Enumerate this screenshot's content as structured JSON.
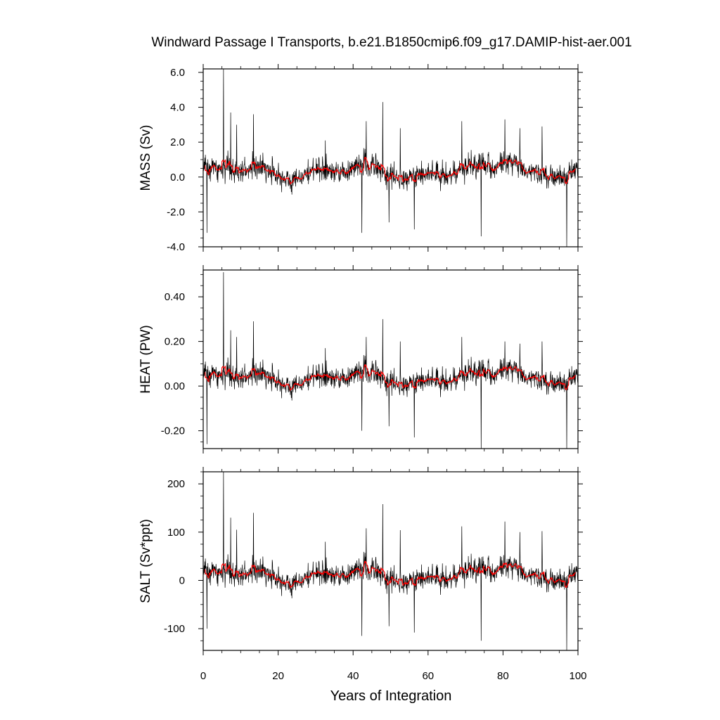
{
  "title": "Windward Passage I Transports, b.e21.B1850cmip6.f09_g17.DAMIP-hist-aer.001",
  "chart_data": [
    {
      "type": "line",
      "ylabel": "MASS (Sv)",
      "xlim": [
        0,
        100
      ],
      "ylim": [
        -4.0,
        6.2
      ],
      "yticks": [
        -4.0,
        -2.0,
        0.0,
        2.0,
        4.0,
        6.0
      ],
      "ytick_labels": [
        "-4.0",
        "-2.0",
        "0.0",
        "2.0",
        "4.0",
        "6.0"
      ],
      "mean": 0.3,
      "sd": 0.72,
      "spikes": [
        [
          5.4,
          6.2
        ],
        [
          7.3,
          3.7
        ],
        [
          8.9,
          3.0
        ],
        [
          13.4,
          3.6
        ],
        [
          32.6,
          2.1
        ],
        [
          43.5,
          3.2
        ],
        [
          47.9,
          4.3
        ],
        [
          52.6,
          2.8
        ],
        [
          69.0,
          3.2
        ],
        [
          80.5,
          3.3
        ],
        [
          84.5,
          2.8
        ],
        [
          90.4,
          2.9
        ],
        [
          1.0,
          -3.2
        ],
        [
          42.3,
          -3.2
        ],
        [
          49.6,
          -2.6
        ],
        [
          56.3,
          -3.0
        ],
        [
          74.2,
          -3.4
        ],
        [
          97.0,
          -4.0
        ]
      ],
      "series": [
        {
          "name": "",
          "color": "#000000",
          "values": "monthly"
        },
        {
          "name": "",
          "color": "#ff0000",
          "values": "annual running mean"
        }
      ]
    },
    {
      "type": "line",
      "ylabel": "HEAT (PW)",
      "xlim": [
        0,
        100
      ],
      "ylim": [
        -0.28,
        0.52
      ],
      "yticks": [
        -0.2,
        0.0,
        0.2,
        0.4
      ],
      "ytick_labels": [
        "-0.20",
        "0.00",
        "0.20",
        "0.40"
      ],
      "mean": 0.035,
      "sd": 0.055,
      "spikes": [
        [
          5.4,
          0.51
        ],
        [
          7.3,
          0.25
        ],
        [
          8.9,
          0.22
        ],
        [
          13.4,
          0.29
        ],
        [
          32.6,
          0.17
        ],
        [
          43.5,
          0.22
        ],
        [
          47.9,
          0.3
        ],
        [
          52.6,
          0.2
        ],
        [
          69.0,
          0.22
        ],
        [
          80.5,
          0.2
        ],
        [
          84.5,
          0.19
        ],
        [
          90.4,
          0.2
        ],
        [
          1.0,
          -0.26
        ],
        [
          42.3,
          -0.2
        ],
        [
          49.6,
          -0.18
        ],
        [
          56.3,
          -0.23
        ],
        [
          74.2,
          -0.28
        ],
        [
          97.0,
          -0.28
        ]
      ],
      "series": [
        {
          "name": "",
          "color": "#000000",
          "values": "monthly"
        },
        {
          "name": "",
          "color": "#ff0000",
          "values": "annual running mean"
        }
      ]
    },
    {
      "type": "line",
      "ylabel": "SALT (Sv*ppt)",
      "xlim": [
        0,
        100
      ],
      "ylim": [
        -145,
        225
      ],
      "yticks": [
        -100,
        0,
        100,
        200
      ],
      "ytick_labels": [
        "-100",
        "0",
        "100",
        "200"
      ],
      "mean": 10,
      "sd": 26,
      "spikes": [
        [
          5.4,
          225
        ],
        [
          7.3,
          130
        ],
        [
          8.9,
          105
        ],
        [
          13.4,
          140
        ],
        [
          32.6,
          80
        ],
        [
          43.5,
          108
        ],
        [
          47.9,
          158
        ],
        [
          52.6,
          104
        ],
        [
          69.0,
          112
        ],
        [
          80.5,
          122
        ],
        [
          84.5,
          100
        ],
        [
          90.4,
          102
        ],
        [
          1.0,
          -100
        ],
        [
          42.3,
          -115
        ],
        [
          49.6,
          -95
        ],
        [
          56.3,
          -108
        ],
        [
          74.2,
          -125
        ],
        [
          97.0,
          -145
        ]
      ],
      "series": [
        {
          "name": "",
          "color": "#000000",
          "values": "monthly"
        },
        {
          "name": "",
          "color": "#ff0000",
          "values": "annual running mean"
        }
      ]
    }
  ],
  "xaxis": {
    "label": "Years of Integration",
    "ticks": [
      0,
      20,
      40,
      60,
      80,
      100
    ],
    "tick_labels": [
      "0",
      "20",
      "40",
      "60",
      "80",
      "100"
    ]
  },
  "colors": {
    "monthly": "#000000",
    "running_mean": "#ff0000",
    "background": "#ffffff"
  }
}
